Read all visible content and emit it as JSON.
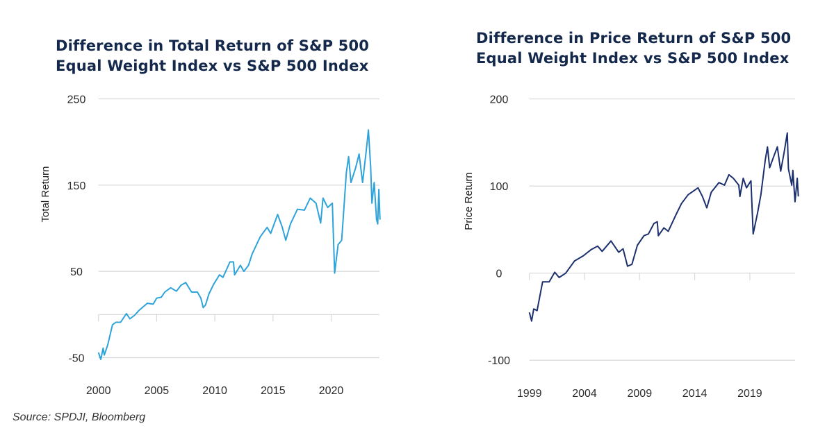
{
  "source": "Source: SPDJI, Bloomberg",
  "chart_data": [
    {
      "type": "line",
      "title": "Difference in Total Return of S&P 500 Equal Weight Index vs S&P 500 Index",
      "title_lines": [
        "Difference in Total Return of S&P 500",
        "Equal Weight Index vs S&P 500 Index"
      ],
      "xlabel": "",
      "ylabel": "Total Return",
      "color": "#2ea3da",
      "xlim": [
        2000,
        2024.2
      ],
      "ylim": [
        -50,
        250
      ],
      "xticks": [
        2000,
        2005,
        2010,
        2015,
        2020
      ],
      "yticks": [
        250,
        150,
        50,
        -50
      ],
      "grid": true,
      "x": [
        2000.0,
        2000.2,
        2000.4,
        2000.5,
        2000.8,
        2001.2,
        2001.5,
        2001.9,
        2002.4,
        2002.7,
        2003.1,
        2003.5,
        2004.2,
        2004.7,
        2005.0,
        2005.4,
        2005.7,
        2006.2,
        2006.7,
        2007.1,
        2007.5,
        2008.0,
        2008.5,
        2008.8,
        2009.0,
        2009.2,
        2009.5,
        2009.9,
        2010.4,
        2010.7,
        2011.3,
        2011.6,
        2011.7,
        2012.2,
        2012.5,
        2012.9,
        2013.2,
        2013.9,
        2014.5,
        2014.8,
        2015.4,
        2015.8,
        2016.1,
        2016.5,
        2017.1,
        2017.7,
        2018.2,
        2018.7,
        2019.1,
        2019.3,
        2019.7,
        2020.1,
        2020.3,
        2020.6,
        2020.9,
        2021.1,
        2021.3,
        2021.5,
        2021.7,
        2022.1,
        2022.4,
        2022.7,
        2023.0,
        2023.2,
        2023.4,
        2023.5,
        2023.7,
        2023.9,
        2024.0,
        2024.1,
        2024.2
      ],
      "y": [
        -44,
        -52,
        -39,
        -47,
        -35,
        -12,
        -9,
        -9,
        1,
        -5,
        -1,
        5,
        13,
        12,
        19,
        20,
        26,
        31,
        27,
        34,
        37,
        26,
        26,
        19,
        8,
        11,
        24,
        35,
        46,
        43,
        61,
        61,
        46,
        57,
        50,
        57,
        70,
        90,
        101,
        94,
        116,
        101,
        86,
        105,
        122,
        121,
        135,
        129,
        106,
        135,
        124,
        129,
        48,
        81,
        86,
        124,
        164,
        183,
        153,
        170,
        186,
        153,
        188,
        214,
        170,
        129,
        153,
        110,
        105,
        145,
        110
      ]
    },
    {
      "type": "line",
      "title": "Difference in Price Return of S&P 500 Equal Weight Index vs S&P 500 Index",
      "title_lines": [
        "Difference in Price Return of S&P 500",
        "Equal Weight Index vs S&P 500 Index"
      ],
      "xlabel": "",
      "ylabel": "Price Return",
      "color": "#1c2f6e",
      "xlim": [
        1999,
        2023.1
      ],
      "ylim": [
        -100,
        200
      ],
      "xticks": [
        1999,
        2004,
        2009,
        2014,
        2019
      ],
      "yticks": [
        200,
        100,
        0,
        -100
      ],
      "grid": true,
      "x": [
        1999.0,
        1999.2,
        1999.4,
        1999.7,
        2000.2,
        2000.8,
        2001.3,
        2001.7,
        2002.3,
        2003.1,
        2003.9,
        2004.6,
        2005.2,
        2005.6,
        2006.4,
        2007.1,
        2007.5,
        2007.9,
        2008.3,
        2008.8,
        2009.4,
        2009.8,
        2010.3,
        2010.6,
        2010.7,
        2011.2,
        2011.6,
        2012.3,
        2012.8,
        2013.4,
        2014.3,
        2014.7,
        2015.1,
        2015.5,
        2016.2,
        2016.7,
        2017.1,
        2017.5,
        2018.0,
        2018.1,
        2018.4,
        2018.7,
        2019.1,
        2019.3,
        2019.7,
        2020.0,
        2020.4,
        2020.6,
        2020.8,
        2021.2,
        2021.5,
        2021.8,
        2022.1,
        2022.4,
        2022.5,
        2022.8,
        2022.9,
        2023.1,
        2023.3,
        2023.4
      ],
      "y": [
        -45,
        -55,
        -41,
        -43,
        -10,
        -10,
        1,
        -5,
        0,
        14,
        20,
        27,
        31,
        25,
        37,
        24,
        28,
        8,
        10,
        32,
        43,
        45,
        57,
        59,
        43,
        52,
        48,
        67,
        80,
        90,
        98,
        88,
        75,
        93,
        104,
        101,
        113,
        109,
        101,
        88,
        109,
        98,
        106,
        45,
        69,
        90,
        130,
        145,
        121,
        135,
        145,
        117,
        138,
        161,
        120,
        101,
        118,
        82,
        109,
        88
      ]
    }
  ]
}
